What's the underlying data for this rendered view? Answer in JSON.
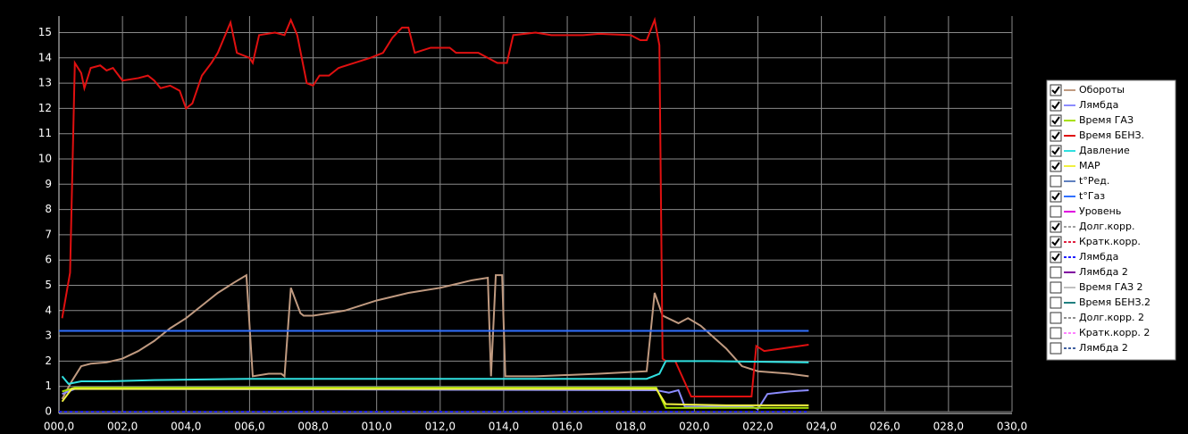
{
  "chart_data": {
    "type": "line",
    "xlim": [
      0,
      30
    ],
    "ylim": [
      0,
      15.3
    ],
    "xticks": [
      {
        "value": 0,
        "label": "000,0"
      },
      {
        "value": 2,
        "label": "002,0"
      },
      {
        "value": 4,
        "label": "004,0"
      },
      {
        "value": 6,
        "label": "006,0"
      },
      {
        "value": 8,
        "label": "008,0"
      },
      {
        "value": 10,
        "label": "010,0"
      },
      {
        "value": 12,
        "label": "012,0"
      },
      {
        "value": 14,
        "label": "014,0"
      },
      {
        "value": 16,
        "label": "016,0"
      },
      {
        "value": 18,
        "label": "018,0"
      },
      {
        "value": 20,
        "label": "020,0"
      },
      {
        "value": 22,
        "label": "022,0"
      },
      {
        "value": 24,
        "label": "024,0"
      },
      {
        "value": 26,
        "label": "026,0"
      },
      {
        "value": 28,
        "label": "028,0"
      },
      {
        "value": 30,
        "label": "030,0"
      }
    ],
    "yticks": [
      0,
      1,
      2,
      3,
      4,
      5,
      6,
      7,
      8,
      9,
      10,
      11,
      12,
      13,
      14,
      15
    ],
    "grid": true,
    "series": [
      {
        "name": "Обороты",
        "color": "#c09a80",
        "checked": true,
        "dashed": false,
        "x": [
          0.1,
          0.4,
          0.7,
          1.0,
          1.5,
          2.0,
          2.5,
          3.0,
          3.5,
          4.0,
          4.5,
          5.0,
          5.5,
          5.9,
          6.1,
          6.6,
          7.0,
          7.1,
          7.3,
          7.6,
          7.7,
          8.0,
          9.0,
          10.0,
          11.0,
          12.0,
          13.0,
          13.5,
          13.6,
          13.75,
          13.95,
          14.05,
          15.0,
          17.0,
          18.5,
          18.75,
          19.0,
          19.5,
          19.8,
          20.2,
          21.0,
          21.5,
          22.0,
          23.0,
          23.6
        ],
        "values": [
          0.5,
          1.2,
          1.8,
          1.9,
          1.95,
          2.1,
          2.4,
          2.8,
          3.3,
          3.7,
          4.2,
          4.7,
          5.1,
          5.4,
          1.4,
          1.5,
          1.5,
          1.4,
          4.9,
          3.9,
          3.8,
          3.8,
          4.0,
          4.4,
          4.7,
          4.9,
          5.2,
          5.3,
          1.4,
          5.4,
          5.4,
          1.4,
          1.4,
          1.5,
          1.6,
          4.7,
          3.8,
          3.5,
          3.7,
          3.4,
          2.5,
          1.8,
          1.6,
          1.5,
          1.4
        ]
      },
      {
        "name": "Лямбда",
        "color": "#8c8cff",
        "checked": true,
        "dashed": false,
        "x": [
          0.1,
          0.5,
          18.8,
          19.2,
          19.5,
          19.7,
          21.8,
          22.0,
          22.3,
          23.0,
          23.6
        ],
        "values": [
          0.7,
          0.9,
          0.85,
          0.75,
          0.85,
          0.2,
          0.2,
          0.1,
          0.7,
          0.8,
          0.85
        ]
      },
      {
        "name": "Время ГАЗ",
        "color": "#a8e000",
        "checked": true,
        "dashed": false,
        "x": [
          0.1,
          0.5,
          18.8,
          19.1,
          23.6
        ],
        "values": [
          0.8,
          0.95,
          0.95,
          0.15,
          0.15
        ]
      },
      {
        "name": "Время БЕНЗ.",
        "color": "#e01010",
        "checked": true,
        "dashed": false,
        "x": [
          0.1,
          0.35,
          0.5,
          0.7,
          0.8,
          1.0,
          1.3,
          1.5,
          1.7,
          2.0,
          2.5,
          2.8,
          3.0,
          3.2,
          3.5,
          3.8,
          4.0,
          4.2,
          4.5,
          4.8,
          5.0,
          5.2,
          5.4,
          5.6,
          6.0,
          6.1,
          6.3,
          6.8,
          7.1,
          7.3,
          7.5,
          7.8,
          8.0,
          8.2,
          8.5,
          8.8,
          9.3,
          9.8,
          10.2,
          10.5,
          10.8,
          11.0,
          11.2,
          11.7,
          12.3,
          12.5,
          13.2,
          13.8,
          14.1,
          14.3,
          15.0,
          15.5,
          16.5,
          17.0,
          18.0,
          18.3,
          18.5,
          18.75,
          18.9,
          19.0,
          19.1,
          19.4,
          19.9,
          21.8,
          21.95,
          22.2,
          23.6
        ],
        "values": [
          3.7,
          5.5,
          13.8,
          13.4,
          12.8,
          13.6,
          13.7,
          13.5,
          13.6,
          13.1,
          13.2,
          13.3,
          13.1,
          12.8,
          12.9,
          12.7,
          12.0,
          12.2,
          13.3,
          13.8,
          14.2,
          14.8,
          15.4,
          14.2,
          14.0,
          13.8,
          14.9,
          15.0,
          14.9,
          15.5,
          14.9,
          13.0,
          12.9,
          13.3,
          13.3,
          13.6,
          13.8,
          14.0,
          14.2,
          14.8,
          15.2,
          15.2,
          14.2,
          14.4,
          14.4,
          14.2,
          14.2,
          13.8,
          13.8,
          14.9,
          15.0,
          14.9,
          14.9,
          14.95,
          14.9,
          14.7,
          14.7,
          15.5,
          14.5,
          2.1,
          2.0,
          2.0,
          0.6,
          0.6,
          2.6,
          2.4,
          2.65
        ]
      },
      {
        "name": "Давление",
        "color": "#30e0e0",
        "checked": true,
        "dashed": false,
        "x": [
          0.1,
          0.3,
          0.7,
          1.5,
          3.0,
          6.0,
          10.0,
          14.0,
          18.5,
          18.9,
          19.1,
          20.5,
          23.6
        ],
        "values": [
          1.4,
          1.1,
          1.2,
          1.2,
          1.25,
          1.3,
          1.3,
          1.3,
          1.3,
          1.5,
          2.0,
          2.0,
          1.95
        ]
      },
      {
        "name": "MAP",
        "color": "#f0f040",
        "checked": true,
        "dashed": false,
        "x": [
          0.1,
          0.4,
          18.8,
          19.1,
          21.0,
          23.6
        ],
        "values": [
          0.4,
          0.9,
          0.9,
          0.3,
          0.25,
          0.25
        ]
      },
      {
        "name": "t°Ред.",
        "color": "#6080c0",
        "checked": false,
        "dashed": false
      },
      {
        "name": "t°Газ",
        "color": "#3070ff",
        "checked": true,
        "dashed": false,
        "x": [
          0,
          23.6
        ],
        "values": [
          3.2,
          3.2
        ]
      },
      {
        "name": "Уровень",
        "color": "#e000e0",
        "checked": false,
        "dashed": false
      },
      {
        "name": "Долг.корр.",
        "color": "#a0a0a0",
        "checked": true,
        "dashed": true,
        "x": [
          0,
          23.6
        ],
        "values": [
          0,
          0
        ]
      },
      {
        "name": "Кратк.корр.",
        "color": "#e02040",
        "checked": true,
        "dashed": true,
        "x": [
          0,
          23.6
        ],
        "values": [
          0,
          0
        ]
      },
      {
        "name": "Лямбда",
        "color": "#2020ff",
        "checked": true,
        "dashed": true,
        "x": [
          0,
          23.6
        ],
        "values": [
          0,
          0
        ]
      },
      {
        "name": "Лямбда 2",
        "color": "#8000a0",
        "checked": false,
        "dashed": false
      },
      {
        "name": "Время ГАЗ 2",
        "color": "#c0c0c0",
        "checked": false,
        "dashed": false
      },
      {
        "name": "Время БЕНЗ.2",
        "color": "#208080",
        "checked": false,
        "dashed": false
      },
      {
        "name": "Долг.корр. 2",
        "color": "#909090",
        "checked": false,
        "dashed": true
      },
      {
        "name": "Кратк.корр. 2",
        "color": "#ff80ff",
        "checked": false,
        "dashed": true
      },
      {
        "name": "Лямбда 2",
        "color": "#4060a0",
        "checked": false,
        "dashed": true
      }
    ]
  }
}
